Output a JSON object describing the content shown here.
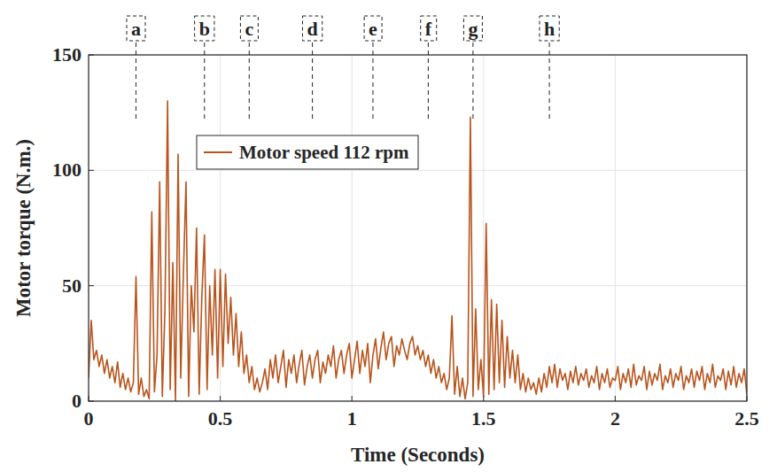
{
  "chart_data": {
    "type": "line",
    "xlabel": "Time (Seconds)",
    "ylabel": "Motor torque (N.m.)",
    "xlim": [
      0,
      2.5
    ],
    "xticks": [
      0,
      0.5,
      1,
      1.5,
      2,
      2.5
    ],
    "ylim": [
      0,
      150
    ],
    "yticks": [
      0,
      50,
      100,
      150
    ],
    "grid": true,
    "legend": "upper center",
    "annotations": [
      {
        "x": 0.18,
        "label": "a"
      },
      {
        "x": 0.44,
        "label": "b"
      },
      {
        "x": 0.61,
        "label": "c"
      },
      {
        "x": 0.85,
        "label": "d"
      },
      {
        "x": 1.08,
        "label": "e"
      },
      {
        "x": 1.29,
        "label": "f"
      },
      {
        "x": 1.46,
        "label": "g"
      },
      {
        "x": 1.75,
        "label": "h"
      }
    ],
    "x": [
      0,
      0.01,
      0.02,
      0.03,
      0.04,
      0.05,
      0.06,
      0.07,
      0.08,
      0.09,
      0.1,
      0.11,
      0.12,
      0.13,
      0.14,
      0.15,
      0.16,
      0.17,
      0.18,
      0.19,
      0.2,
      0.21,
      0.22,
      0.23,
      0.24,
      0.25,
      0.26,
      0.27,
      0.28,
      0.29,
      0.3,
      0.31,
      0.32,
      0.33,
      0.34,
      0.35,
      0.36,
      0.37,
      0.38,
      0.39,
      0.4,
      0.41,
      0.42,
      0.43,
      0.44,
      0.45,
      0.46,
      0.47,
      0.48,
      0.49,
      0.5,
      0.51,
      0.52,
      0.53,
      0.54,
      0.55,
      0.56,
      0.57,
      0.58,
      0.59,
      0.6,
      0.61,
      0.62,
      0.63,
      0.64,
      0.65,
      0.66,
      0.67,
      0.68,
      0.69,
      0.7,
      0.71,
      0.72,
      0.73,
      0.74,
      0.75,
      0.76,
      0.77,
      0.78,
      0.79,
      0.8,
      0.81,
      0.82,
      0.83,
      0.84,
      0.85,
      0.86,
      0.87,
      0.88,
      0.89,
      0.9,
      0.91,
      0.92,
      0.93,
      0.94,
      0.95,
      0.96,
      0.97,
      0.98,
      0.99,
      1,
      1.01,
      1.02,
      1.03,
      1.04,
      1.05,
      1.06,
      1.07,
      1.08,
      1.09,
      1.1,
      1.11,
      1.12,
      1.13,
      1.14,
      1.15,
      1.16,
      1.17,
      1.18,
      1.19,
      1.2,
      1.21,
      1.22,
      1.23,
      1.24,
      1.25,
      1.26,
      1.27,
      1.28,
      1.29,
      1.3,
      1.31,
      1.32,
      1.33,
      1.34,
      1.35,
      1.36,
      1.37,
      1.38,
      1.39,
      1.4,
      1.41,
      1.42,
      1.43,
      1.44,
      1.45,
      1.46,
      1.47,
      1.48,
      1.49,
      1.5,
      1.51,
      1.52,
      1.53,
      1.54,
      1.55,
      1.56,
      1.57,
      1.58,
      1.59,
      1.6,
      1.61,
      1.62,
      1.63,
      1.64,
      1.65,
      1.66,
      1.67,
      1.68,
      1.69,
      1.7,
      1.71,
      1.72,
      1.73,
      1.74,
      1.75,
      1.76,
      1.77,
      1.78,
      1.79,
      1.8,
      1.81,
      1.82,
      1.83,
      1.84,
      1.85,
      1.86,
      1.87,
      1.88,
      1.89,
      1.9,
      1.91,
      1.92,
      1.93,
      1.94,
      1.95,
      1.96,
      1.97,
      1.98,
      1.99,
      2,
      2.01,
      2.02,
      2.03,
      2.04,
      2.05,
      2.06,
      2.07,
      2.08,
      2.09,
      2.1,
      2.11,
      2.12,
      2.13,
      2.14,
      2.15,
      2.16,
      2.17,
      2.18,
      2.19,
      2.2,
      2.21,
      2.22,
      2.23,
      2.24,
      2.25,
      2.26,
      2.27,
      2.28,
      2.29,
      2.3,
      2.31,
      2.32,
      2.33,
      2.34,
      2.35,
      2.36,
      2.37,
      2.38,
      2.39,
      2.4,
      2.41,
      2.42,
      2.43,
      2.44,
      2.45,
      2.46,
      2.47,
      2.48,
      2.49,
      2.5
    ],
    "series": [
      {
        "name": "Motor speed 112 rpm",
        "color": "#b8541c",
        "values": [
          10,
          35,
          18,
          22,
          15,
          20,
          12,
          18,
          10,
          15,
          8,
          17,
          6,
          12,
          5,
          10,
          4,
          8,
          54,
          3,
          10,
          2,
          5,
          1,
          82,
          4,
          20,
          95,
          2,
          40,
          130,
          5,
          60,
          0,
          107,
          10,
          55,
          95,
          2,
          50,
          30,
          75,
          3,
          45,
          72,
          5,
          50,
          20,
          57,
          10,
          57,
          15,
          55,
          25,
          45,
          20,
          38,
          15,
          30,
          12,
          20,
          8,
          15,
          5,
          10,
          4,
          8,
          14,
          5,
          18,
          10,
          20,
          8,
          15,
          22,
          6,
          18,
          12,
          20,
          8,
          16,
          22,
          7,
          15,
          20,
          10,
          18,
          22,
          8,
          17,
          12,
          20,
          15,
          24,
          10,
          18,
          22,
          12,
          20,
          25,
          10,
          18,
          26,
          12,
          22,
          15,
          25,
          8,
          20,
          27,
          14,
          23,
          30,
          18,
          25,
          28,
          15,
          24,
          20,
          27,
          22,
          18,
          25,
          28,
          20,
          24,
          18,
          22,
          15,
          20,
          12,
          18,
          10,
          15,
          8,
          12,
          5,
          10,
          37,
          3,
          15,
          2,
          10,
          1,
          8,
          123,
          2,
          40,
          5,
          18,
          2,
          77,
          3,
          44,
          5,
          42,
          8,
          35,
          6,
          28,
          10,
          22,
          8,
          20,
          5,
          12,
          4,
          10,
          5,
          8,
          3,
          10,
          4,
          12,
          6,
          15,
          8,
          16,
          6,
          14,
          9,
          12,
          5,
          13,
          8,
          15,
          7,
          12,
          9,
          14,
          6,
          11,
          8,
          15,
          5,
          12,
          8,
          14,
          6,
          10,
          9,
          15,
          5,
          12,
          8,
          14,
          6,
          16,
          7,
          11,
          9,
          15,
          5,
          13,
          7,
          12,
          9,
          16,
          5,
          11,
          8,
          14,
          6,
          12,
          9,
          15,
          5,
          11,
          8,
          14,
          6,
          13,
          9,
          15,
          5,
          12,
          8,
          16,
          6,
          11,
          9,
          14,
          5,
          13,
          7,
          15,
          6,
          12,
          8,
          14,
          3
        ]
      }
    ]
  }
}
